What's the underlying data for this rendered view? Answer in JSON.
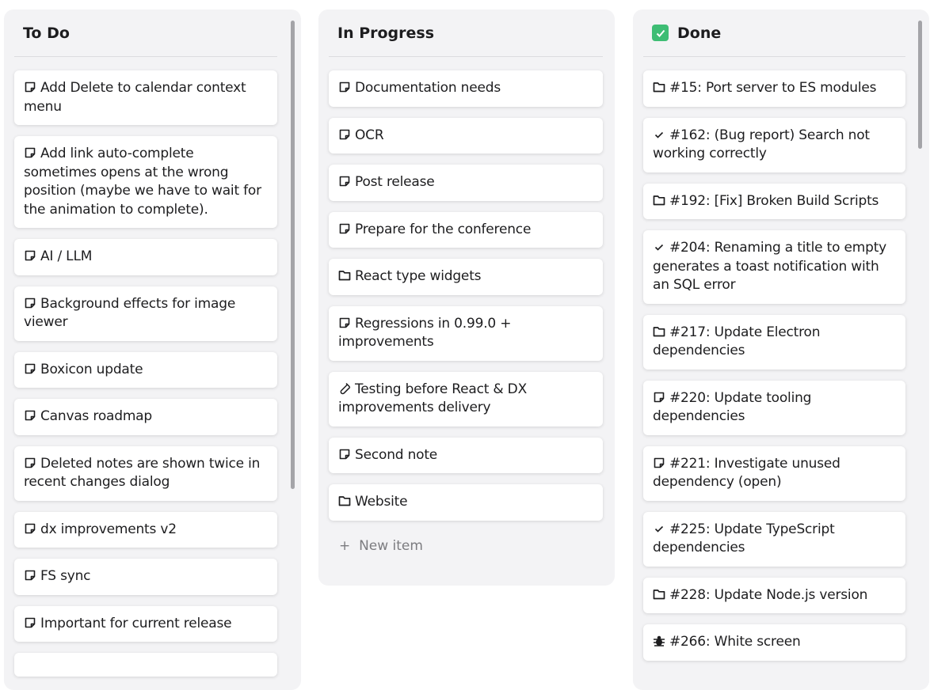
{
  "columns": [
    {
      "title": "To Do",
      "icon": null,
      "items": [
        {
          "icon": "note",
          "text": "Add Delete to calendar context menu"
        },
        {
          "icon": "note",
          "text": "Add link auto-complete sometimes opens at the wrong position (maybe we have to wait for the animation to complete)."
        },
        {
          "icon": "note",
          "text": "AI / LLM"
        },
        {
          "icon": "note",
          "text": "Background effects for image viewer"
        },
        {
          "icon": "note",
          "text": "Boxicon update"
        },
        {
          "icon": "note",
          "text": "Canvas roadmap"
        },
        {
          "icon": "note",
          "text": "Deleted notes are shown twice in recent changes dialog"
        },
        {
          "icon": "note",
          "text": "dx improvements v2"
        },
        {
          "icon": "note",
          "text": "FS sync"
        },
        {
          "icon": "note",
          "text": "Important for current release"
        },
        {
          "icon": "note",
          "text": ""
        }
      ]
    },
    {
      "title": "In Progress",
      "icon": null,
      "new_item": "New item",
      "items": [
        {
          "icon": "note",
          "text": "Documentation needs"
        },
        {
          "icon": "note",
          "text": "OCR"
        },
        {
          "icon": "note",
          "text": "Post release"
        },
        {
          "icon": "note",
          "text": "Prepare for the conference"
        },
        {
          "icon": "folder",
          "text": "React type widgets"
        },
        {
          "icon": "note",
          "text": "Regressions in 0.99.0 + improvements"
        },
        {
          "icon": "test-tube",
          "text": "Testing before React & DX improvements delivery"
        },
        {
          "icon": "note",
          "text": "Second note"
        },
        {
          "icon": "folder",
          "text": "Website"
        }
      ]
    },
    {
      "title": "Done",
      "icon": "check-box",
      "icon_color": "#3ebd74",
      "items": [
        {
          "icon": "folder",
          "text": "#15: Port server to ES modules"
        },
        {
          "icon": "check",
          "text": "#162: (Bug report) Search not working correctly"
        },
        {
          "icon": "folder",
          "text": "#192: [Fix] Broken Build Scripts"
        },
        {
          "icon": "check",
          "text": "#204: Renaming a title to empty generates a toast notification with an SQL error"
        },
        {
          "icon": "folder",
          "text": "#217: Update Electron dependencies"
        },
        {
          "icon": "note",
          "text": "#220: Update tooling dependencies"
        },
        {
          "icon": "note",
          "text": "#221: Investigate unused dependency (open)"
        },
        {
          "icon": "check",
          "text": "#225: Update TypeScript dependencies"
        },
        {
          "icon": "folder",
          "text": "#228: Update Node.js version"
        },
        {
          "icon": "bug",
          "text": "#266: White screen"
        }
      ]
    }
  ]
}
